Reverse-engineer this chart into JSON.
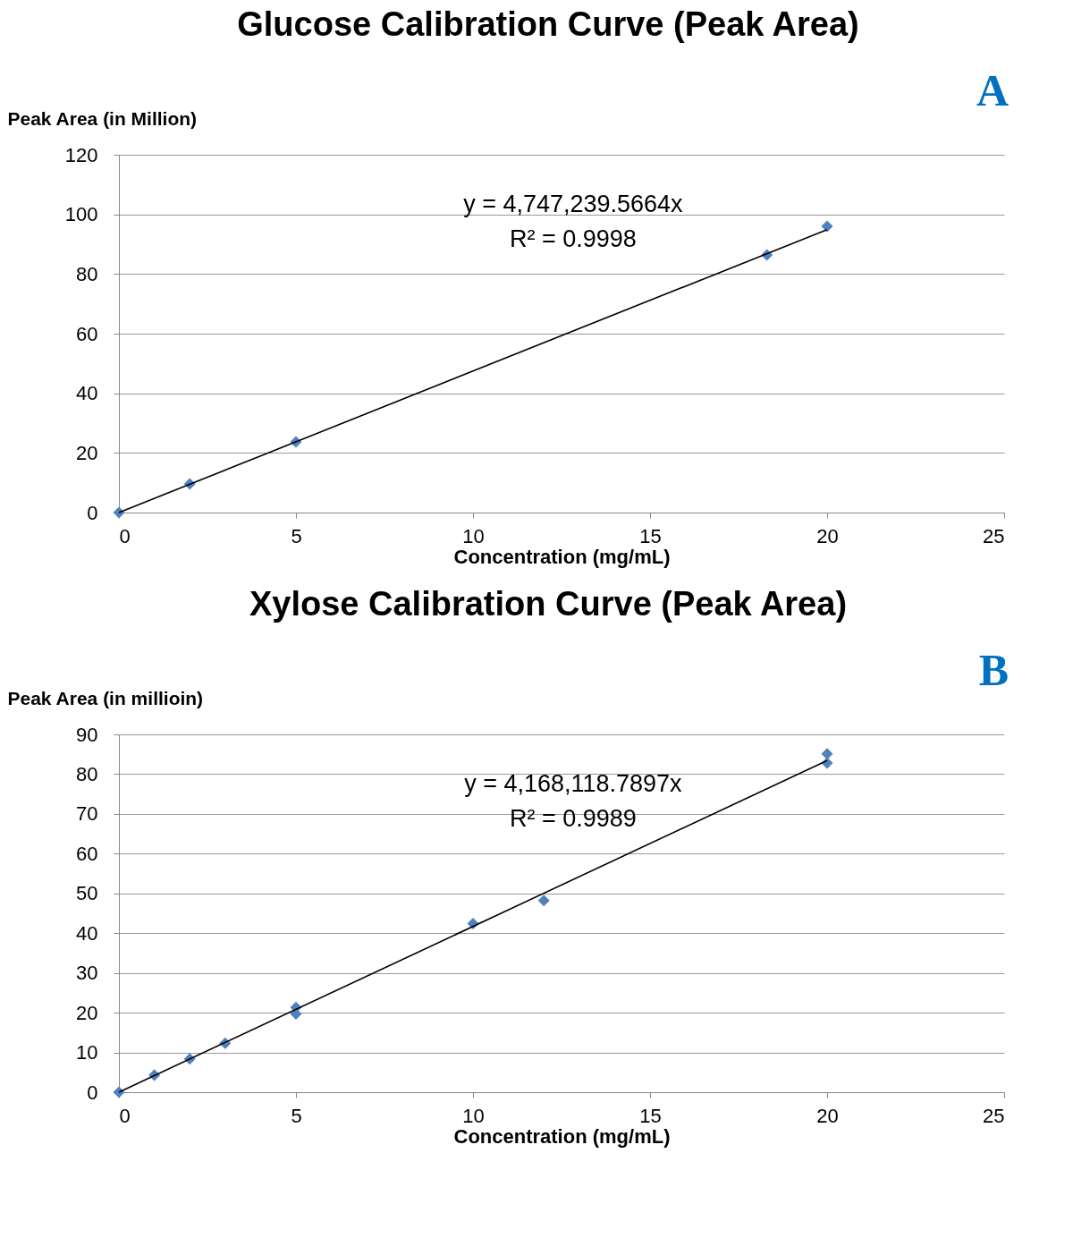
{
  "chart_data": [
    {
      "type": "scatter",
      "title": "Glucose Calibration Curve (Peak Area)",
      "xlabel": "Concentration (mg/mL)",
      "ylabel": "Peak Area (in Million)",
      "xlim": [
        0,
        25
      ],
      "ylim": [
        0,
        120
      ],
      "xticks": [
        0,
        5,
        10,
        15,
        20,
        25
      ],
      "yticks": [
        0,
        20,
        40,
        60,
        80,
        100,
        120
      ],
      "grid": "y",
      "marker": "diamond",
      "annotations": [
        "y = 4,747,239.5664x",
        "R² = 0.9998",
        "A"
      ],
      "series": [
        {
          "color": "#4f81bd",
          "x": [
            0,
            2,
            5,
            18.3,
            20
          ],
          "values": [
            0,
            9.6,
            23.7,
            86.4,
            96.0
          ]
        },
        {
          "type": "line",
          "marker": "none",
          "color": "#000000",
          "x": [
            0,
            20
          ],
          "values": [
            0,
            94.9
          ]
        }
      ]
    },
    {
      "type": "scatter",
      "title": "Xylose Calibration Curve (Peak Area)",
      "xlabel": "Concentration (mg/mL)",
      "ylabel": "Peak Area (in millioin)",
      "xlim": [
        0,
        25
      ],
      "ylim": [
        0,
        90
      ],
      "xticks": [
        0,
        5,
        10,
        15,
        20,
        25
      ],
      "yticks": [
        0,
        10,
        20,
        30,
        40,
        50,
        60,
        70,
        80,
        90
      ],
      "grid": "y",
      "marker": "diamond",
      "annotations": [
        "y = 4,168,118.7897x",
        "R² = 0.9989",
        "B"
      ],
      "series": [
        {
          "color": "#4f81bd",
          "x": [
            0,
            1,
            2,
            3,
            5,
            5,
            10,
            12,
            20,
            20
          ],
          "values": [
            0,
            4.3,
            8.4,
            12.3,
            21.3,
            19.7,
            42.4,
            48.2,
            85.1,
            82.8
          ]
        },
        {
          "type": "line",
          "marker": "none",
          "color": "#000000",
          "x": [
            0,
            20
          ],
          "values": [
            0,
            83.4
          ]
        }
      ]
    }
  ]
}
